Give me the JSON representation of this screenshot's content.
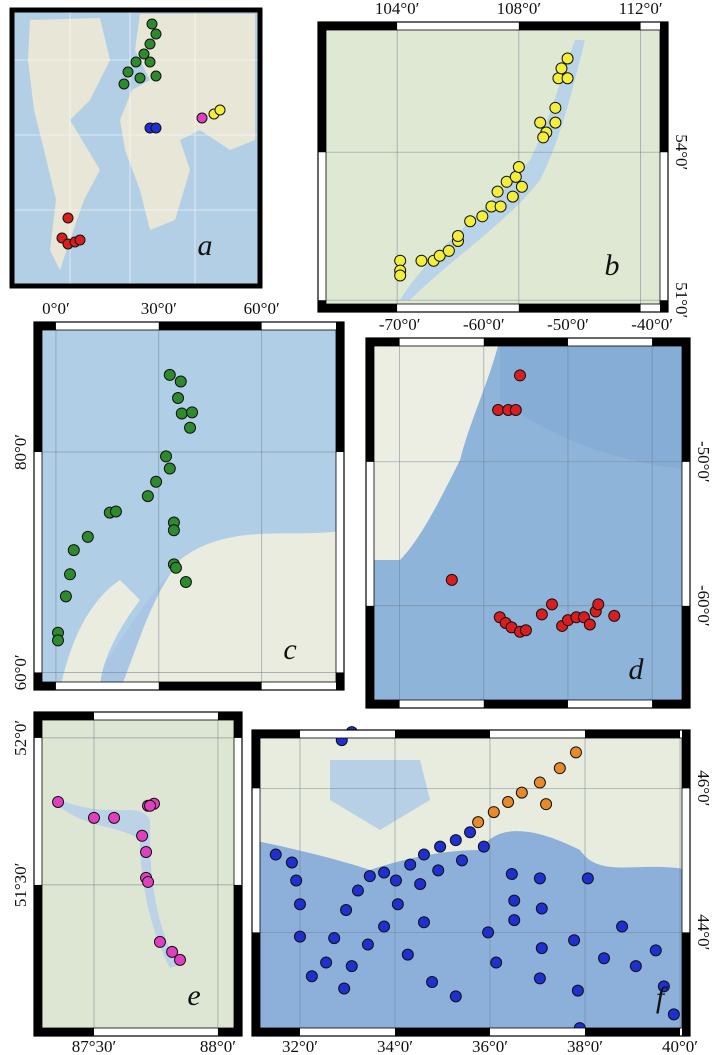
{
  "panels": [
    {
      "label": "a"
    },
    {
      "label": "b",
      "xlim": [
        101.4,
        112.9
      ],
      "ylim": [
        50.76,
        56.64
      ],
      "xticks": [
        {
          "value": 104,
          "label": "104°0′"
        },
        {
          "value": 108,
          "label": "108°0′"
        },
        {
          "value": 112,
          "label": "112°0′"
        }
      ],
      "yticks": [
        {
          "value": 51,
          "label": "51°0′"
        },
        {
          "value": 54,
          "label": "54°0′"
        }
      ],
      "series": [
        {
          "color": "#f2ee3a",
          "lon": [
            104.1,
            104.1,
            104.1,
            104.8,
            105.2,
            105.4,
            105.7,
            106.0,
            106.0,
            106.4,
            106.8,
            107.1,
            107.3,
            107.6,
            107.8,
            107.4,
            107.9,
            108.0,
            108.1,
            108.7,
            108.9,
            109.2,
            108.8,
            109.3,
            109.4,
            109.6,
            109.6,
            109.2
          ],
          "lat": [
            51.8,
            51.6,
            51.5,
            51.8,
            51.8,
            51.9,
            52.0,
            52.2,
            52.3,
            52.6,
            52.7,
            52.9,
            53.2,
            53.4,
            53.1,
            52.9,
            53.5,
            53.7,
            53.3,
            54.6,
            54.4,
            54.6,
            54.3,
            55.5,
            55.7,
            55.9,
            55.5,
            54.9
          ]
        }
      ]
    },
    {
      "label": "c",
      "xlim": [
        -6.4,
        84.0
      ],
      "ylim": [
        58.4,
        91.8
      ],
      "xticks": [
        {
          "value": 0,
          "label": "0°0′"
        },
        {
          "value": 30,
          "label": "30°0′"
        },
        {
          "value": 60,
          "label": "60°0′"
        }
      ],
      "yticks": [
        {
          "value": 60,
          "label": "60°0′"
        },
        {
          "value": 80,
          "label": "80°0′"
        }
      ],
      "series": [
        {
          "color": "#2d8a2d",
          "lon": [
            33.2,
            36.4,
            35.6,
            36.7,
            39.7,
            39.1,
            32.1,
            33.2,
            29.2,
            26.8,
            15.7,
            17.5,
            9.3,
            5.2,
            4.1,
            2.9,
            0.6,
            0.6,
            34.4,
            34.4,
            34.4,
            35.0,
            37.9
          ],
          "lat": [
            87.0,
            86.4,
            84.9,
            83.5,
            83.6,
            82.2,
            79.6,
            78.5,
            77.3,
            76.0,
            74.5,
            74.6,
            72.3,
            71.1,
            68.9,
            66.9,
            63.6,
            62.9,
            73.6,
            72.9,
            69.8,
            69.5,
            68.2
          ]
        }
      ]
    },
    {
      "label": "d",
      "xlim": [
        -74.0,
        -35.5
      ],
      "ylim": [
        -67.1,
        -41.4
      ],
      "xticks": [
        {
          "value": -70,
          "label": "-70°0′"
        },
        {
          "value": -60,
          "label": "-60°0′"
        },
        {
          "value": -50,
          "label": "-50°0′"
        },
        {
          "value": -40,
          "label": "-40°0′"
        }
      ],
      "yticks": [
        {
          "value": -60,
          "label": "-60°0′"
        },
        {
          "value": -50,
          "label": "-50°0′"
        }
      ],
      "series": [
        {
          "color": "#d81e1e",
          "lon": [
            -55.7,
            -58.3,
            -57.1,
            -56.2,
            -63.8,
            -58.1,
            -57.4,
            -56.7,
            -55.7,
            -55.0,
            -53.1,
            -51.9,
            -50.7,
            -50.0,
            -49.0,
            -48.1,
            -47.4,
            -46.7,
            -46.4,
            -44.5
          ],
          "lat": [
            -44.0,
            -46.4,
            -46.4,
            -46.4,
            -58.2,
            -60.8,
            -61.2,
            -61.5,
            -61.8,
            -61.7,
            -60.6,
            -59.9,
            -61.4,
            -61.0,
            -60.8,
            -60.8,
            -61.3,
            -60.4,
            -59.9,
            -60.7
          ]
        }
      ]
    },
    {
      "label": "e",
      "xlim": [
        87.258,
        88.097
      ],
      "ylim": [
        50.986,
        52.088
      ],
      "xticks": [
        {
          "value": 87.5,
          "label": "87°30′"
        },
        {
          "value": 88,
          "label": "88°0′"
        }
      ],
      "yticks": [
        {
          "value": 51.5,
          "label": "51°30′"
        },
        {
          "value": 52,
          "label": "52°0′"
        }
      ],
      "series": [
        {
          "color": "#e040c0",
          "lon": [
            87.355,
            87.5,
            87.581,
            87.718,
            87.742,
            87.726,
            87.694,
            87.71,
            87.71,
            87.718,
            87.766,
            87.815,
            87.847
          ],
          "lat": [
            51.782,
            51.728,
            51.728,
            51.769,
            51.776,
            51.769,
            51.667,
            51.612,
            51.524,
            51.51,
            51.306,
            51.272,
            51.245
          ]
        }
      ]
    },
    {
      "label": "f",
      "xlim": [
        30.99,
        40.21
      ],
      "ylim": [
        42.56,
        46.81
      ],
      "xticks": [
        {
          "value": 32,
          "label": "32°0′"
        },
        {
          "value": 34,
          "label": "34°0′"
        },
        {
          "value": 36,
          "label": "36°0′"
        },
        {
          "value": 38,
          "label": "38°0′"
        },
        {
          "value": 40,
          "label": "40°0′"
        }
      ],
      "yticks": [
        {
          "value": 44,
          "label": "44°0′"
        },
        {
          "value": 46,
          "label": "46°0′"
        }
      ],
      "series": [
        {
          "color": "#1f2fd0",
          "lon": [
            33.09,
            32.88,
            31.49,
            31.83,
            31.92,
            32.0,
            32.0,
            32.25,
            32.55,
            32.72,
            32.97,
            33.22,
            33.47,
            33.77,
            34.02,
            34.32,
            34.61,
            34.95,
            35.28,
            35.58,
            35.87,
            35.41,
            34.91,
            34.53,
            34.06,
            33.77,
            33.43,
            33.09,
            32.93,
            34.27,
            34.61,
            34.78,
            35.28,
            35.96,
            36.13,
            36.46,
            36.51,
            36.51,
            37.05,
            37.09,
            37.09,
            37.05,
            37.85,
            37.77,
            38.06,
            37.89,
            38.4,
            38.78,
            39.07,
            39.49,
            39.66,
            39.87
          ],
          "lat": [
            46.78,
            46.67,
            45.08,
            44.97,
            44.72,
            44.39,
            43.94,
            43.39,
            43.58,
            43.92,
            44.31,
            44.58,
            44.78,
            44.83,
            44.72,
            44.94,
            45.08,
            45.19,
            45.28,
            45.39,
            45.19,
            45.0,
            44.86,
            44.67,
            44.39,
            44.08,
            43.83,
            43.53,
            43.22,
            43.69,
            44.14,
            43.31,
            43.11,
            44.0,
            43.58,
            44.81,
            44.44,
            44.17,
            44.75,
            44.33,
            43.78,
            43.36,
            43.19,
            43.89,
            44.75,
            42.67,
            43.64,
            44.08,
            43.53,
            43.75,
            43.25,
            42.86
          ]
        },
        {
          "color": "#e8892a",
          "lon": [
            37.81,
            37.47,
            37.05,
            36.67,
            36.38,
            36.08,
            35.75,
            37.18
          ],
          "lat": [
            46.5,
            46.28,
            46.08,
            45.94,
            45.81,
            45.67,
            45.53,
            45.78
          ]
        }
      ]
    }
  ]
}
